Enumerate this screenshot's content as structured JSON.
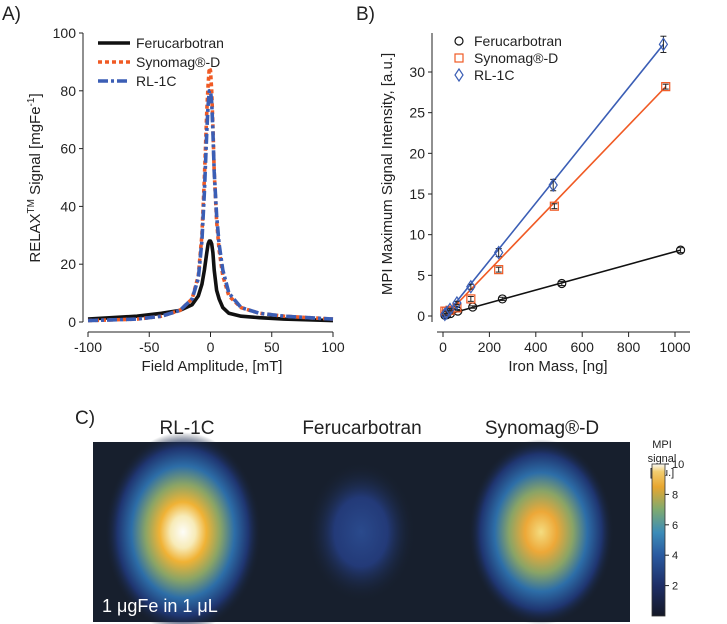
{
  "chart_data": [
    {
      "panel_label": "A)",
      "type": "line",
      "title": "",
      "xlabel": "Field Amplitude, [mT]",
      "ylabel_main": "RELAX",
      "ylabel_sup": "TM",
      "ylabel_rest": " Signal [mgFe",
      "ylabel_sup2": "-1",
      "ylabel_end": "]",
      "xlim": [
        -100,
        100
      ],
      "ylim": [
        0,
        100
      ],
      "xticks": [
        "-100",
        "-50",
        "0",
        "50",
        "100"
      ],
      "yticks": [
        "0",
        "20",
        "40",
        "60",
        "80",
        "100"
      ],
      "legend_position": "top-left",
      "series": [
        {
          "name": "Ferucarbotran",
          "style": "solid",
          "color": "#111111",
          "x": [
            -100,
            -60,
            -40,
            -25,
            -15,
            -10,
            -7,
            -5,
            -3,
            -2,
            -1,
            0,
            1,
            2,
            3,
            5,
            7,
            10,
            15,
            25,
            40,
            60,
            100
          ],
          "y": [
            1,
            2,
            3,
            4,
            6,
            9,
            13,
            18,
            24,
            27,
            28,
            28,
            27,
            24,
            18,
            11,
            8,
            5,
            3,
            2,
            1.5,
            1,
            0.5
          ]
        },
        {
          "name": "Synomag®-D",
          "style": "dotted",
          "color": "#f05a24",
          "x": [
            -100,
            -60,
            -40,
            -25,
            -15,
            -10,
            -7,
            -5,
            -3,
            -2,
            -1,
            0,
            1,
            2,
            3,
            5,
            7,
            10,
            15,
            25,
            40,
            60,
            100
          ],
          "y": [
            0.5,
            1,
            2,
            4,
            8,
            16,
            30,
            50,
            73,
            82,
            88,
            87,
            80,
            68,
            52,
            35,
            25,
            16,
            9,
            5,
            3,
            2,
            1
          ]
        },
        {
          "name": "RL-1C",
          "style": "dashdot",
          "color": "#3b5eb5",
          "x": [
            -100,
            -60,
            -40,
            -25,
            -15,
            -10,
            -7,
            -5,
            -3,
            -2,
            -1,
            0,
            1,
            2,
            3,
            5,
            7,
            10,
            15,
            25,
            40,
            60,
            100
          ],
          "y": [
            0.5,
            1,
            2,
            4,
            8,
            15,
            28,
            45,
            66,
            75,
            80,
            80,
            76,
            66,
            52,
            37,
            27,
            18,
            10,
            5,
            3,
            2,
            1
          ]
        }
      ]
    },
    {
      "panel_label": "B)",
      "type": "scatter",
      "title": "",
      "xlabel": "Iron Mass, [ng]",
      "ylabel": "MPI Maximum Signal Intensity, [a.u.]",
      "xlim": [
        -30,
        1050
      ],
      "ylim": [
        -1,
        35
      ],
      "xticks": [
        "0",
        "200",
        "400",
        "600",
        "800",
        "1000"
      ],
      "yticks": [
        "0",
        "5",
        "10",
        "15",
        "20",
        "25",
        "30"
      ],
      "legend_position": "top-left",
      "series": [
        {
          "name": "Ferucarbotran",
          "marker": "circle",
          "color": "#111111",
          "x": [
            8,
            16,
            32,
            64,
            128,
            256,
            512,
            1024
          ],
          "y": [
            0.1,
            0.15,
            0.3,
            0.6,
            1.1,
            2.1,
            4.0,
            8.1
          ],
          "err": [
            0.1,
            0.1,
            0.1,
            0.1,
            0.15,
            0.2,
            0.25,
            0.3
          ],
          "fit": [
            [
              0,
              0.05
            ],
            [
              1024,
              8.1
            ]
          ]
        },
        {
          "name": "Synomag®-D",
          "marker": "square",
          "color": "#f05a24",
          "x": [
            8,
            16,
            30,
            60,
            120,
            240,
            480,
            960
          ],
          "y": [
            0.6,
            0.6,
            0.7,
            1.0,
            2.1,
            5.7,
            13.5,
            28.2
          ],
          "err": [
            0.1,
            0.1,
            0.1,
            0.2,
            0.3,
            0.3,
            0.3,
            0.3
          ],
          "fit": [
            [
              0,
              -0.3
            ],
            [
              960,
              28.2
            ]
          ]
        },
        {
          "name": "RL-1C",
          "marker": "diamond",
          "color": "#3b5eb5",
          "x": [
            8,
            16,
            30,
            60,
            120,
            240,
            475,
            950
          ],
          "y": [
            0.2,
            0.4,
            0.8,
            1.6,
            3.6,
            7.8,
            16.1,
            33.4
          ],
          "err": [
            0.1,
            0.1,
            0.15,
            0.2,
            0.3,
            0.5,
            0.7,
            1.0
          ],
          "fit": [
            [
              0,
              -0.3
            ],
            [
              950,
              33.4
            ]
          ]
        }
      ]
    },
    {
      "panel_label": "C)",
      "type": "heatmap",
      "image_labels": [
        "RL-1C",
        "Ferucarbotran",
        "Synomag®-D"
      ],
      "peak_values": [
        10,
        3.5,
        8.5
      ],
      "colorbar_title": [
        "MPI",
        "signal",
        "[a.u.]"
      ],
      "colorbar_range": [
        0,
        10
      ],
      "colorbar_ticks": [
        "2",
        "4",
        "6",
        "8",
        "10"
      ],
      "annotation": "1 μgFe in 1 μL"
    }
  ]
}
